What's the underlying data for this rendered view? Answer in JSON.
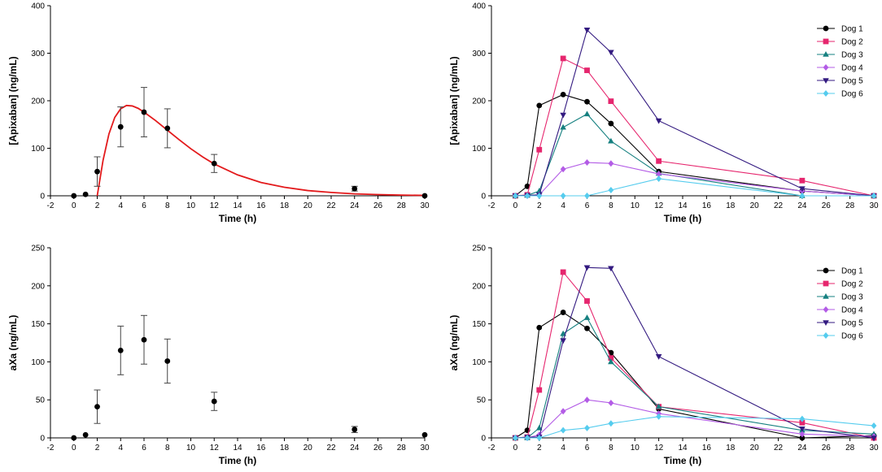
{
  "chart_data": [
    {
      "id": "apix-mean",
      "type": "scatter",
      "xlabel": "Time (h)",
      "ylabel": "[Apixaban] (ng/mL)",
      "xlim": [
        -2,
        30
      ],
      "ylim": [
        0,
        400
      ],
      "xticks": [
        -2,
        0,
        2,
        4,
        6,
        8,
        10,
        12,
        14,
        16,
        18,
        20,
        22,
        24,
        26,
        28,
        30
      ],
      "yticks": [
        0,
        100,
        200,
        300,
        400
      ],
      "fit": {
        "color": "#e31a1c",
        "points": [
          [
            2,
            0
          ],
          [
            2.5,
            75
          ],
          [
            3,
            130
          ],
          [
            3.5,
            165
          ],
          [
            4,
            183
          ],
          [
            4.5,
            190
          ],
          [
            5,
            189
          ],
          [
            5.5,
            184
          ],
          [
            6,
            176
          ],
          [
            7,
            158
          ],
          [
            8,
            138
          ],
          [
            9,
            118
          ],
          [
            10,
            99
          ],
          [
            11,
            82
          ],
          [
            12,
            67
          ],
          [
            14,
            44
          ],
          [
            16,
            28
          ],
          [
            18,
            18
          ],
          [
            20,
            11
          ],
          [
            22,
            7
          ],
          [
            24,
            4
          ],
          [
            26,
            2.5
          ],
          [
            28,
            1.5
          ],
          [
            30,
            0.8
          ]
        ]
      },
      "series": [
        {
          "name": "Mean",
          "color": "#000000",
          "marker": "circle",
          "x": [
            0,
            1,
            2,
            4,
            6,
            8,
            12,
            24,
            30
          ],
          "y": [
            0,
            3,
            51,
            145,
            176,
            142,
            68,
            15,
            0
          ],
          "err": [
            0,
            0,
            31,
            42,
            52,
            41,
            19,
            5,
            0
          ]
        }
      ]
    },
    {
      "id": "apix-dogs",
      "type": "line",
      "xlabel": "Time (h)",
      "ylabel": "[Apixaban] (ng/mL)",
      "xlim": [
        -2,
        30
      ],
      "ylim": [
        0,
        400
      ],
      "xticks": [
        -2,
        0,
        2,
        4,
        6,
        8,
        10,
        12,
        14,
        16,
        18,
        20,
        22,
        24,
        26,
        28,
        30
      ],
      "yticks": [
        0,
        100,
        200,
        300,
        400
      ],
      "legend": "top-right",
      "series": [
        {
          "name": "Dog 1",
          "color": "#000000",
          "marker": "circle",
          "x": [
            0,
            1,
            2,
            4,
            6,
            8,
            12,
            24,
            30
          ],
          "y": [
            0,
            20,
            190,
            213,
            198,
            152,
            51,
            10,
            0
          ]
        },
        {
          "name": "Dog 2",
          "color": "#e6266e",
          "marker": "square",
          "x": [
            0,
            1,
            2,
            4,
            6,
            8,
            12,
            24,
            30
          ],
          "y": [
            0,
            2,
            97,
            289,
            264,
            199,
            73,
            32,
            0
          ]
        },
        {
          "name": "Dog 3",
          "color": "#168080",
          "marker": "triangle",
          "x": [
            0,
            1,
            2,
            4,
            6,
            8,
            12,
            24,
            30
          ],
          "y": [
            0,
            1,
            10,
            144,
            172,
            115,
            47,
            0,
            0
          ]
        },
        {
          "name": "Dog 4",
          "color": "#b35ce6",
          "marker": "diamond",
          "x": [
            0,
            1,
            2,
            4,
            6,
            8,
            12,
            24,
            30
          ],
          "y": [
            0,
            0,
            2,
            56,
            70,
            68,
            46,
            10,
            0
          ]
        },
        {
          "name": "Dog 5",
          "color": "#331a80",
          "marker": "tridown",
          "x": [
            0,
            1,
            2,
            4,
            6,
            8,
            12,
            24,
            30
          ],
          "y": [
            0,
            1,
            2,
            170,
            349,
            302,
            158,
            15,
            0
          ]
        },
        {
          "name": "Dog 6",
          "color": "#55ccee",
          "marker": "diamond",
          "x": [
            0,
            1,
            2,
            4,
            6,
            8,
            12,
            24,
            30
          ],
          "y": [
            0,
            0,
            0,
            0,
            0,
            12,
            36,
            0,
            0
          ]
        }
      ]
    },
    {
      "id": "axa-mean",
      "type": "scatter",
      "xlabel": "Time (h)",
      "ylabel": "aXa (ng/mL)",
      "xlim": [
        -2,
        30
      ],
      "ylim": [
        0,
        250
      ],
      "xticks": [
        -2,
        0,
        2,
        4,
        6,
        8,
        10,
        12,
        14,
        16,
        18,
        20,
        22,
        24,
        26,
        28,
        30
      ],
      "yticks": [
        0,
        50,
        100,
        150,
        200,
        250
      ],
      "series": [
        {
          "name": "Mean",
          "color": "#000000",
          "marker": "circle",
          "x": [
            0,
            1,
            2,
            4,
            6,
            8,
            12,
            24,
            30
          ],
          "y": [
            0,
            4,
            41,
            115,
            129,
            101,
            48,
            11,
            4
          ],
          "err": [
            0,
            0,
            22,
            32,
            32,
            29,
            12,
            4,
            0
          ]
        }
      ]
    },
    {
      "id": "axa-dogs",
      "type": "line",
      "xlabel": "Time (h)",
      "ylabel": "aXa (ng/mL)",
      "xlim": [
        -2,
        30
      ],
      "ylim": [
        0,
        250
      ],
      "xticks": [
        -2,
        0,
        2,
        4,
        6,
        8,
        10,
        12,
        14,
        16,
        18,
        20,
        22,
        24,
        26,
        28,
        30
      ],
      "yticks": [
        0,
        50,
        100,
        150,
        200,
        250
      ],
      "legend": "top-right",
      "series": [
        {
          "name": "Dog 1",
          "color": "#000000",
          "marker": "circle",
          "x": [
            0,
            1,
            2,
            4,
            6,
            8,
            12,
            24,
            30
          ],
          "y": [
            0,
            10,
            145,
            165,
            144,
            112,
            38,
            0,
            3
          ]
        },
        {
          "name": "Dog 2",
          "color": "#e6266e",
          "marker": "square",
          "x": [
            0,
            1,
            2,
            4,
            6,
            8,
            12,
            24,
            30
          ],
          "y": [
            0,
            1,
            63,
            218,
            180,
            105,
            41,
            20,
            0
          ]
        },
        {
          "name": "Dog 3",
          "color": "#168080",
          "marker": "triangle",
          "x": [
            0,
            1,
            2,
            4,
            6,
            8,
            12,
            24,
            30
          ],
          "y": [
            0,
            0,
            13,
            137,
            158,
            100,
            41,
            10,
            5
          ]
        },
        {
          "name": "Dog 4",
          "color": "#b35ce6",
          "marker": "diamond",
          "x": [
            0,
            1,
            2,
            4,
            6,
            8,
            12,
            24,
            30
          ],
          "y": [
            0,
            0,
            4,
            35,
            50,
            46,
            32,
            5,
            2
          ]
        },
        {
          "name": "Dog 5",
          "color": "#331a80",
          "marker": "tridown",
          "x": [
            0,
            1,
            2,
            4,
            6,
            8,
            12,
            24,
            30
          ],
          "y": [
            0,
            1,
            1,
            128,
            224,
            223,
            107,
            12,
            0
          ]
        },
        {
          "name": "Dog 6",
          "color": "#55ccee",
          "marker": "diamond",
          "x": [
            0,
            1,
            2,
            4,
            6,
            8,
            12,
            24,
            30
          ],
          "y": [
            0,
            0,
            0,
            10,
            13,
            19,
            28,
            25,
            16
          ]
        }
      ]
    }
  ]
}
